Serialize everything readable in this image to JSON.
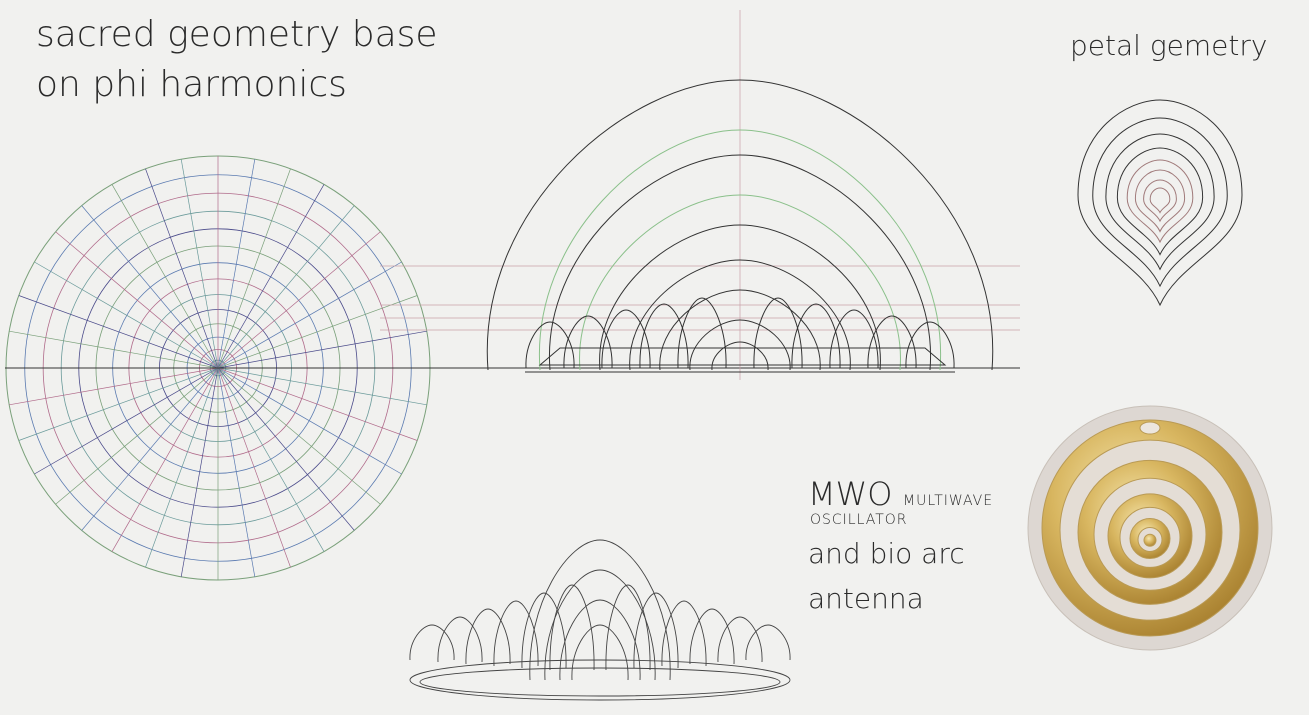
{
  "texts": {
    "title_line1": "sacred geometry base",
    "title_line2": "on phi harmonics",
    "petal_title": "petal gemetry",
    "mwo": "MWO",
    "multiwave": "MULTIWAVE",
    "oscillator": "OSCILLATOR",
    "bio_arc": "and bio arc",
    "antenna": "antenna"
  }
}
